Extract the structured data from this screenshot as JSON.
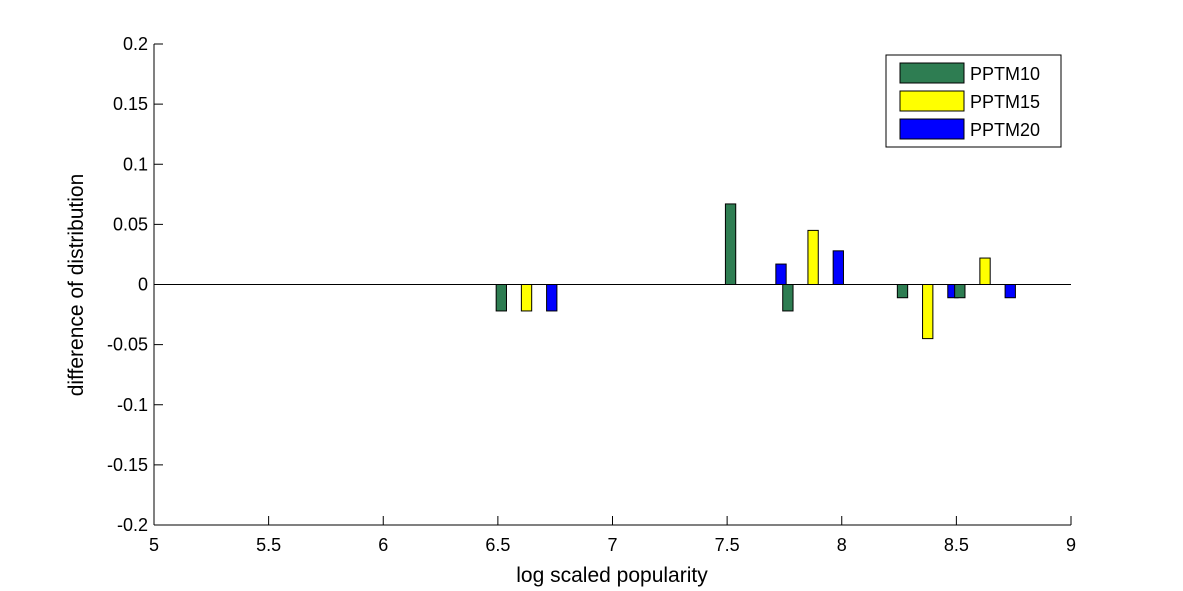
{
  "chart_data": {
    "type": "bar",
    "title": "",
    "xlabel": "log scaled popularity",
    "ylabel": "difference of distribution",
    "xlim": [
      5,
      9
    ],
    "ylim": [
      -0.2,
      0.2
    ],
    "xticks": [
      "5",
      "5.5",
      "6",
      "6.5",
      "7",
      "7.5",
      "8",
      "8.5",
      "9"
    ],
    "yticks": [
      "-0.2",
      "-0.15",
      "-0.1",
      "-0.05",
      "0",
      "0.05",
      "0.1",
      "0.15",
      "0.2"
    ],
    "xtick_values": [
      5,
      5.5,
      6,
      6.5,
      7,
      7.5,
      8,
      8.5,
      9
    ],
    "ytick_values": [
      -0.2,
      -0.15,
      -0.1,
      -0.05,
      0,
      0.05,
      0.1,
      0.15,
      0.2
    ],
    "grid": false,
    "legend_position": "top-right",
    "bin_centers": [
      6.625,
      7.625,
      7.875,
      8.375,
      8.625
    ],
    "series": [
      {
        "name": "PPTM10",
        "color": "#2e7d52",
        "values": [
          -0.022,
          0.067,
          -0.022,
          -0.011,
          -0.011
        ]
      },
      {
        "name": "PPTM15",
        "color": "#ffff00",
        "values": [
          -0.022,
          0,
          0.045,
          -0.045,
          0.022
        ]
      },
      {
        "name": "PPTM20",
        "color": "#0000ff",
        "values": [
          -0.022,
          0.017,
          0.028,
          -0.011,
          -0.011
        ]
      }
    ]
  }
}
